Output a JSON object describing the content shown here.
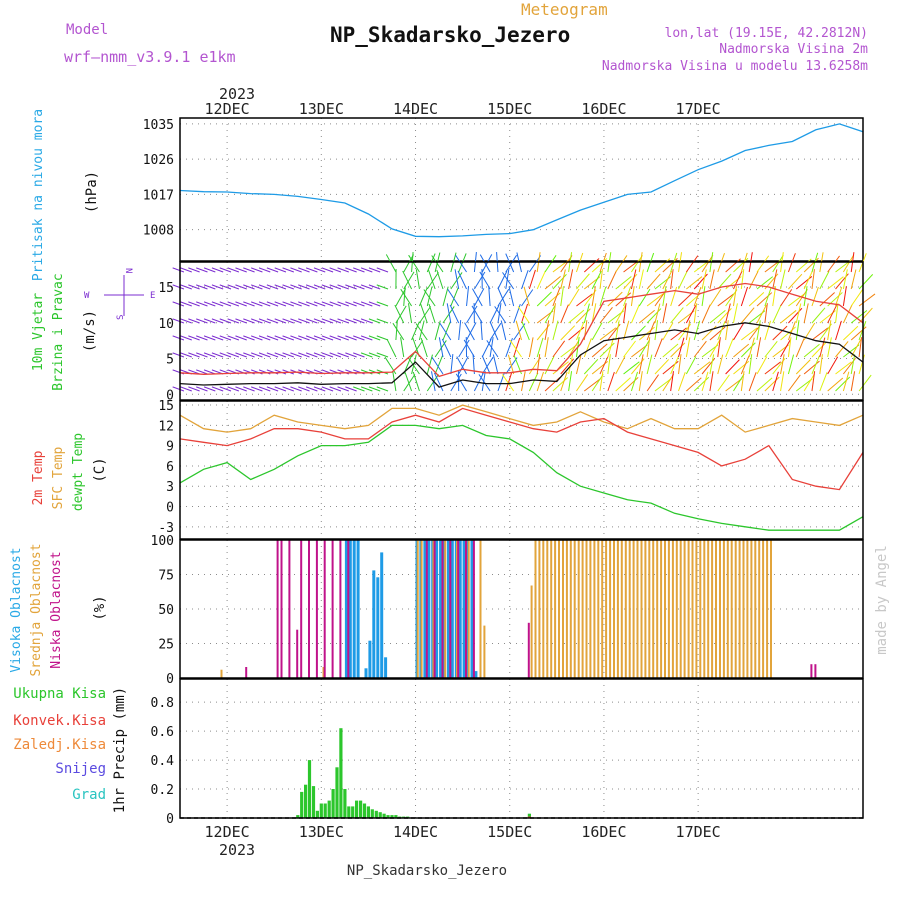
{
  "header": {
    "model_label": "Model",
    "model_name": "wrf—nmm_v3.9.1  e1km",
    "meteogram_label": "Meteogram",
    "station_title": "NP_Skadarsko_Jezero",
    "lonlat": "lon,lat (19.15E, 42.2812N)",
    "elevation": "Nadmorska Visina 2m",
    "model_elevation": "Nadmorska Visina u modelu 13.6258m",
    "footer_station": "NP_Skadarsko_Jezero",
    "watermark": "made by Angel"
  },
  "colors": {
    "pressure": "#1e9be6",
    "t2m": "#e8413a",
    "sfc": "#e2a43b",
    "dewpt": "#2cc62c",
    "high_cloud": "#1e9be6",
    "mid_cloud": "#e2a43b",
    "low_cloud": "#c0128a",
    "total_precip": "#2cc62c",
    "conv_precip": "#e8413a",
    "freezing": "#ee8a3a",
    "snow": "#5b4be0",
    "grad": "#29c4c0",
    "wind_label": "#7b2cd0"
  },
  "x_axis": {
    "top_year": "2023",
    "bottom_year": "2023",
    "days": [
      "12DEC",
      "13DEC",
      "14DEC",
      "15DEC",
      "16DEC",
      "17DEC"
    ]
  },
  "panels": {
    "pressure": {
      "ylabel": "Pritisak na nivou mora",
      "unit": "(hPa)"
    },
    "wind": {
      "ylabel1": "10m Vjetar",
      "ylabel2": "Brzina i Pravac",
      "unit": "(m/s)",
      "compass_n": "N",
      "compass_s": "S",
      "compass_w": "W",
      "compass_e": "E"
    },
    "temp": {
      "label_2m": "2m Temp",
      "label_sfc": "SFC Temp",
      "label_dew": "dewpt Temp",
      "unit": "(C)"
    },
    "cloud": {
      "label_high": "Visoka Oblacnost",
      "label_mid": "Srednja Oblacnost",
      "label_low": "Niska Oblacnost",
      "unit": "(%)"
    },
    "precip": {
      "label_total": "Ukupna Kisa",
      "label_conv": "Konvek.Kisa",
      "label_frz": "Zaledj.Kisa",
      "label_snow": "Snijeg",
      "label_grad": "Grad",
      "ylabel": "1hr Precip (mm)"
    }
  },
  "chart_data": [
    {
      "type": "line",
      "panel": "pressure",
      "ylabel": "Pritisak na nivou mora (hPa)",
      "yticks": [
        1008,
        1017,
        1026,
        1035
      ],
      "ylim": [
        1000,
        1036.5
      ],
      "x_unit": "hours from 2023-12-12 00:00",
      "series": [
        {
          "name": "Pritisak na nivou mora",
          "x": [
            -12,
            -6,
            0,
            6,
            12,
            18,
            24,
            30,
            36,
            42,
            48,
            54,
            60,
            66,
            72,
            78,
            84,
            90,
            96,
            102,
            108,
            114,
            120,
            126,
            132,
            138,
            144,
            150,
            156,
            162
          ],
          "y": [
            1018.0,
            1017.7,
            1017.6,
            1017.2,
            1017.0,
            1016.5,
            1015.7,
            1014.8,
            1012.0,
            1008.2,
            1006.3,
            1006.2,
            1006.4,
            1006.8,
            1007.0,
            1008.0,
            1010.5,
            1013.0,
            1015.0,
            1017.0,
            1017.6,
            1020.5,
            1023.3,
            1025.5,
            1028.2,
            1029.5,
            1030.5,
            1033.5,
            1035.0,
            1033.0
          ]
        }
      ]
    },
    {
      "type": "line",
      "panel": "wind",
      "ylabel": "10m Vjetar Brzina i Pravac (m/s)",
      "yticks": [
        0,
        5,
        10,
        15
      ],
      "ylim": [
        -0.8,
        18.5
      ],
      "series": [
        {
          "name": "10m Vjetar Brzina",
          "x": [
            -12,
            -6,
            0,
            6,
            12,
            18,
            24,
            30,
            36,
            42,
            48,
            54,
            60,
            66,
            72,
            78,
            84,
            90,
            96,
            102,
            108,
            114,
            120,
            126,
            132,
            138,
            144,
            150,
            156,
            162
          ],
          "y": [
            1.5,
            1.3,
            1.4,
            1.5,
            1.5,
            1.6,
            1.4,
            1.5,
            1.5,
            1.6,
            4.5,
            1.0,
            2.0,
            1.5,
            1.5,
            2.0,
            1.8,
            5.5,
            7.5,
            8.0,
            8.5,
            9.0,
            8.5,
            9.5,
            10.0,
            9.5,
            8.5,
            7.5,
            7.0,
            4.5
          ]
        }
      ]
    },
    {
      "type": "line",
      "panel": "temp",
      "ylabel": "(C)",
      "yticks": [
        -3,
        0,
        3,
        6,
        9,
        12,
        15
      ],
      "ylim": [
        -4.8,
        15.6
      ],
      "series": [
        {
          "name": "2m Temp",
          "x": [
            -12,
            -6,
            0,
            6,
            12,
            18,
            24,
            30,
            36,
            42,
            48,
            54,
            60,
            66,
            72,
            78,
            84,
            90,
            96,
            102,
            108,
            114,
            120,
            126,
            132,
            138,
            144,
            150,
            156,
            162
          ],
          "y": [
            10.0,
            9.5,
            9.0,
            10.0,
            11.5,
            11.5,
            11.0,
            10.0,
            10.0,
            12.5,
            13.5,
            12.5,
            14.5,
            13.5,
            12.5,
            11.5,
            11.0,
            12.5,
            13.0,
            11.0,
            10.0,
            9.0,
            8.0,
            6.0,
            7.0,
            9.0,
            4.0,
            3.0,
            2.5,
            8.0
          ]
        },
        {
          "name": "SFC Temp",
          "x": [
            -12,
            -6,
            0,
            6,
            12,
            18,
            24,
            30,
            36,
            42,
            48,
            54,
            60,
            66,
            72,
            78,
            84,
            90,
            96,
            102,
            108,
            114,
            120,
            126,
            132,
            138,
            144,
            150,
            156,
            162
          ],
          "y": [
            13.5,
            11.5,
            11.0,
            11.5,
            13.5,
            12.5,
            12.0,
            11.5,
            12.0,
            14.5,
            14.5,
            13.5,
            15.0,
            14.0,
            13.0,
            12.0,
            12.5,
            14.0,
            12.5,
            11.5,
            13.0,
            11.5,
            11.5,
            13.5,
            11.0,
            12.0,
            13.0,
            12.5,
            12.0,
            13.5
          ]
        },
        {
          "name": "dewpt Temp",
          "x": [
            -12,
            -6,
            0,
            6,
            12,
            18,
            24,
            30,
            36,
            42,
            48,
            54,
            60,
            66,
            72,
            78,
            84,
            90,
            96,
            102,
            108,
            114,
            120,
            126,
            132,
            138,
            144,
            150,
            156,
            162
          ],
          "y": [
            3.5,
            5.5,
            6.5,
            4.0,
            5.5,
            7.5,
            9.0,
            9.0,
            9.5,
            12.0,
            12.0,
            11.5,
            12.0,
            10.5,
            10.0,
            8.0,
            5.0,
            3.0,
            2.0,
            1.0,
            0.5,
            -1.0,
            -1.8,
            -2.5,
            -3.0,
            -3.5,
            -3.5,
            -3.5,
            -3.5,
            -1.5
          ]
        }
      ]
    },
    {
      "type": "bar",
      "panel": "cloud",
      "ylabel": "(%)",
      "yticks": [
        0,
        25,
        50,
        75,
        100
      ],
      "ylim": [
        0,
        100
      ],
      "series": [
        {
          "name": "Visoka Oblacnost",
          "x": [
            30,
            31,
            32,
            33,
            35,
            36,
            37,
            38,
            39,
            40,
            48,
            49,
            50,
            51,
            52,
            53,
            54,
            55,
            56,
            57,
            58,
            59,
            60,
            61,
            62,
            63
          ],
          "y": [
            100,
            100,
            100,
            100,
            7,
            27,
            78,
            73,
            91,
            15,
            100,
            100,
            100,
            100,
            100,
            100,
            100,
            100,
            100,
            100,
            100,
            100,
            100,
            100,
            100,
            5
          ]
        },
        {
          "name": "Srednja Oblacnost",
          "x": [
            -2,
            24,
            48,
            49,
            52,
            55,
            58,
            61,
            64,
            65,
            77,
            78,
            79,
            80,
            81,
            82,
            83,
            84,
            85,
            86,
            87,
            88,
            89,
            90,
            91,
            92,
            93,
            94,
            95,
            96,
            97,
            98,
            99,
            100,
            101,
            102,
            103,
            104,
            105,
            106,
            107,
            108,
            109,
            110,
            111,
            112,
            113,
            114,
            115,
            116,
            117,
            118,
            119,
            120,
            121,
            122,
            123,
            124,
            125,
            126,
            127,
            128,
            129,
            130,
            131,
            132,
            133,
            134,
            135,
            136,
            137,
            138
          ],
          "y": [
            6,
            8,
            100,
            100,
            100,
            100,
            100,
            100,
            100,
            38,
            67,
            100,
            100,
            100,
            100,
            100,
            100,
            100,
            100,
            100,
            100,
            100,
            100,
            100,
            100,
            100,
            100,
            100,
            100,
            100,
            100,
            100,
            100,
            100,
            100,
            100,
            100,
            100,
            100,
            100,
            100,
            100,
            100,
            100,
            100,
            100,
            100,
            100,
            100,
            100,
            100,
            100,
            100,
            100,
            100,
            100,
            100,
            100,
            100,
            100,
            100,
            100,
            100,
            100,
            100,
            100,
            100,
            100,
            100,
            100,
            100,
            100
          ]
        },
        {
          "name": "Niska Oblacnost",
          "x": [
            4,
            12,
            13,
            15,
            17,
            18,
            20,
            22,
            24,
            26,
            28,
            30,
            50,
            52,
            54,
            56,
            58,
            60,
            62,
            76,
            148,
            149
          ],
          "y": [
            8,
            100,
            100,
            100,
            35,
            100,
            100,
            100,
            100,
            100,
            100,
            100,
            100,
            100,
            100,
            100,
            100,
            100,
            100,
            40,
            10,
            10
          ]
        }
      ]
    },
    {
      "type": "bar",
      "panel": "precip",
      "ylabel": "1hr Precip (mm)",
      "yticks": [
        0,
        0.2,
        0.4,
        0.6,
        0.8
      ],
      "ylim": [
        0,
        0.96
      ],
      "series": [
        {
          "name": "Ukupna Kisa",
          "x": [
            18,
            19,
            20,
            21,
            22,
            23,
            24,
            25,
            26,
            27,
            28,
            29,
            30,
            31,
            32,
            33,
            34,
            35,
            36,
            37,
            38,
            39,
            40,
            41,
            42,
            43,
            44,
            45,
            46,
            77
          ],
          "y": [
            0.02,
            0.18,
            0.23,
            0.4,
            0.22,
            0.05,
            0.1,
            0.1,
            0.12,
            0.2,
            0.35,
            0.62,
            0.2,
            0.08,
            0.08,
            0.12,
            0.12,
            0.1,
            0.08,
            0.06,
            0.05,
            0.04,
            0.03,
            0.02,
            0.02,
            0.02,
            0.01,
            0.01,
            0.01,
            0.03
          ]
        },
        {
          "name": "Konvek.Kisa",
          "x": [
            77
          ],
          "y": [
            0.01
          ]
        },
        {
          "name": "Zaledj.Kisa",
          "x": [],
          "y": []
        },
        {
          "name": "Snijeg",
          "x": [],
          "y": []
        },
        {
          "name": "Grad",
          "x": [],
          "y": []
        }
      ]
    }
  ]
}
